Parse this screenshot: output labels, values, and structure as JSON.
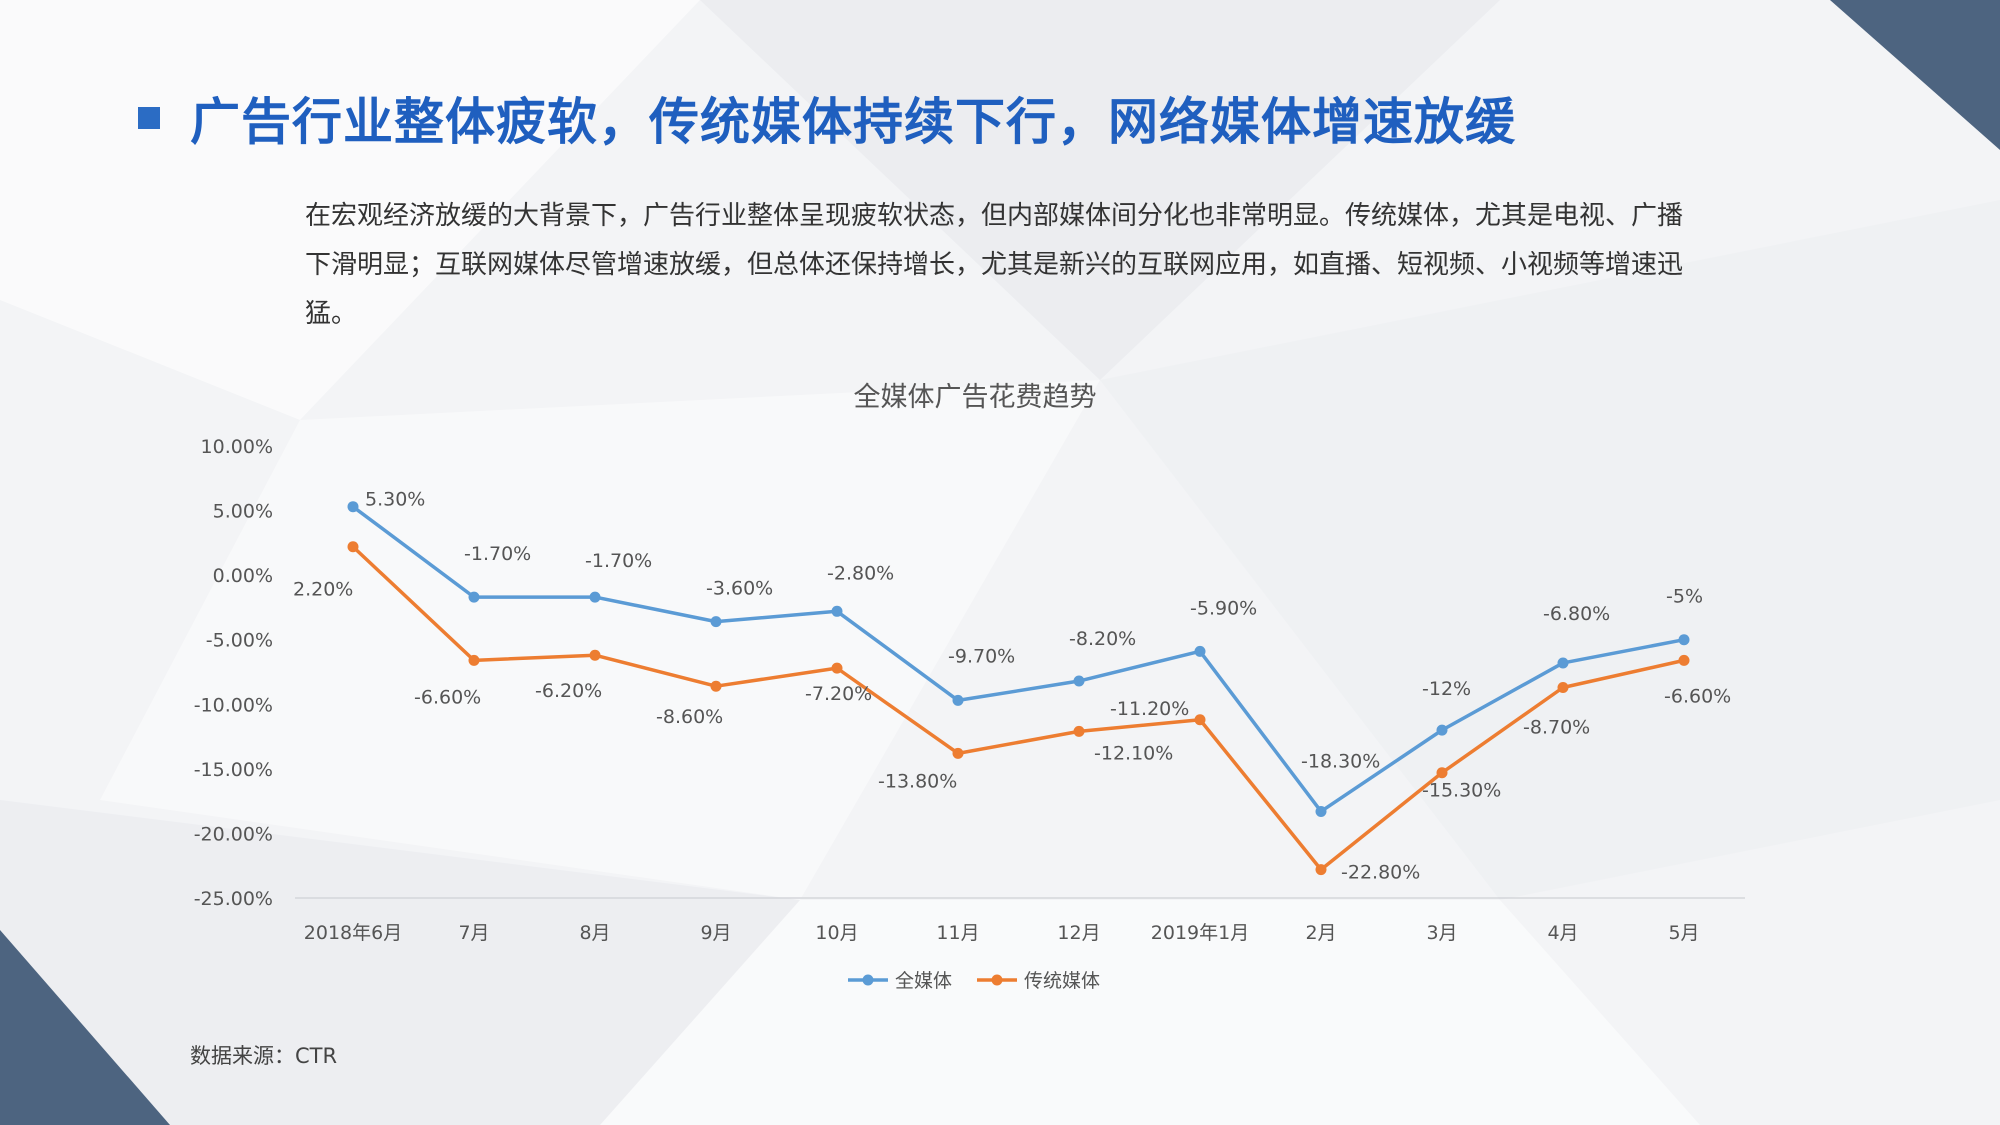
{
  "slide": {
    "title": "广告行业整体疲软，传统媒体持续下行，网络媒体增速放缓",
    "intro": "在宏观经济放缓的大背景下，广告行业整体呈现疲软状态，但内部媒体间分化也非常明显。传统媒体，尤其是电视、广播下滑明显；互联网媒体尽管增速放缓，但总体还保持增长，尤其是新兴的互联网应用，如直播、短视频、小视频等增速迅猛。",
    "source": "数据来源：CTR"
  },
  "colors": {
    "title": "#1f5fbf",
    "series_all": "#5b9bd5",
    "series_traditional": "#ed7d31",
    "corner": "#4d6480"
  },
  "chart_data": {
    "type": "line",
    "title": "全媒体广告花费趋势",
    "categories": [
      "2018年6月",
      "7月",
      "8月",
      "9月",
      "10月",
      "11月",
      "12月",
      "2019年1月",
      "2月",
      "3月",
      "4月",
      "5月"
    ],
    "y_tick_labels": [
      "10.00%",
      "5.00%",
      "0.00%",
      "-5.00%",
      "-10.00%",
      "-15.00%",
      "-20.00%",
      "-25.00%"
    ],
    "ylim": [
      -25,
      10
    ],
    "y_step": 5,
    "grid": false,
    "legend": "bottom",
    "series": [
      {
        "name": "全媒体",
        "values": [
          5.3,
          -1.7,
          -1.7,
          -3.6,
          -2.8,
          -9.7,
          -8.2,
          -5.9,
          -18.3,
          -12,
          -6.8,
          -5
        ],
        "labels": [
          "5.30%",
          "-1.70%",
          "-1.70%",
          "-3.60%",
          "-2.80%",
          "-9.70%",
          "-8.20%",
          "-5.90%",
          "-18.30%",
          "-12%",
          "-6.80%",
          "-5%"
        ]
      },
      {
        "name": "传统媒体",
        "values": [
          2.2,
          -6.6,
          -6.2,
          -8.6,
          -7.2,
          -13.8,
          -12.1,
          -11.2,
          -22.8,
          -15.3,
          -8.7,
          -6.6
        ],
        "labels": [
          "2.20%",
          "-6.60%",
          "-6.20%",
          "-8.60%",
          "-7.20%",
          "-13.80%",
          "-12.10%",
          "-11.20%",
          "-22.80%",
          "-15.30%",
          "-8.70%",
          "-6.60%"
        ]
      }
    ]
  }
}
